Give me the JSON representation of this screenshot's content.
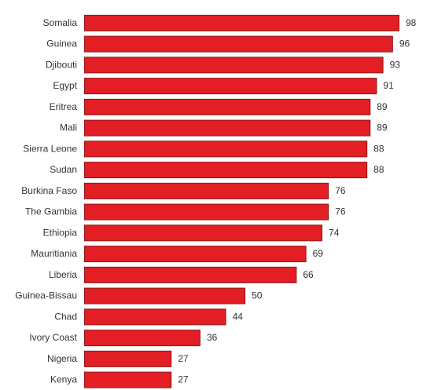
{
  "chart_data": {
    "type": "bar",
    "orientation": "horizontal",
    "bar_color": "#e31e24",
    "bar_border_color": "#8b1a1a",
    "categories": [
      "Somalia",
      "Guinea",
      "Djibouti",
      "Egypt",
      "Eritrea",
      "Mali",
      "Sierra Leone",
      "Sudan",
      "Burkina Faso",
      "The Gambia",
      "Ethiopia",
      "Mauritiania",
      "Liberia",
      "Guinea-Bissau",
      "Chad",
      "Ivory Coast",
      "Nigeria",
      "Kenya"
    ],
    "values": [
      98,
      96,
      93,
      91,
      89,
      89,
      88,
      88,
      76,
      76,
      74,
      69,
      66,
      50,
      44,
      36,
      27,
      27
    ],
    "xlim": [
      0,
      98
    ],
    "grid": false,
    "legend": "none",
    "data_labels": true
  }
}
